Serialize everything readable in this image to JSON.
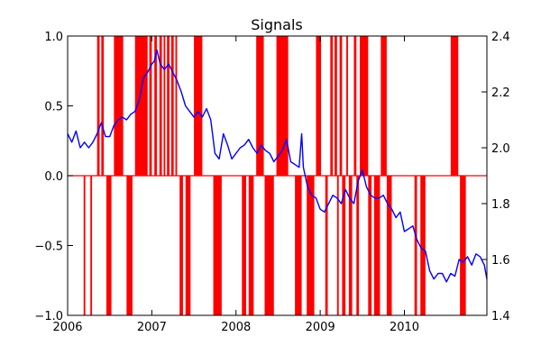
{
  "chart_data": {
    "type": "bar",
    "title": "Signals",
    "xlabel": "",
    "ylabel": "",
    "y2label": "",
    "xlim": [
      2006.0,
      2010.98
    ],
    "ylim": [
      -1.0,
      1.0
    ],
    "y2lim": [
      1.4,
      2.4
    ],
    "x_ticks": [
      2006,
      2007,
      2008,
      2009,
      2010
    ],
    "x_tick_labels": [
      "2006",
      "2007",
      "2008",
      "2009",
      "2010"
    ],
    "y_ticks": [
      1.0,
      0.5,
      0.0,
      -0.5,
      -1.0
    ],
    "y_tick_labels": [
      "1.0",
      "0.5",
      "0.0",
      "−0.5",
      "−1.0"
    ],
    "y2_ticks": [
      2.4,
      2.2,
      2.0,
      1.8,
      1.6,
      1.4
    ],
    "y2_tick_labels": [
      "2.4",
      "2.2",
      "2.0",
      "1.8",
      "1.6",
      "1.4"
    ],
    "grid": false,
    "legend": "none",
    "colors": {
      "signal": "#ff0000",
      "price": "#0000ff",
      "axis": "#000000"
    },
    "signals": [
      {
        "start": 2006.19,
        "end": 2006.21,
        "value": -1
      },
      {
        "start": 2006.27,
        "end": 2006.29,
        "value": -1
      },
      {
        "start": 2006.35,
        "end": 2006.38,
        "value": 1
      },
      {
        "start": 2006.4,
        "end": 2006.43,
        "value": 1
      },
      {
        "start": 2006.46,
        "end": 2006.52,
        "value": -1
      },
      {
        "start": 2006.55,
        "end": 2006.66,
        "value": 1
      },
      {
        "start": 2006.7,
        "end": 2006.77,
        "value": -1
      },
      {
        "start": 2006.8,
        "end": 2006.95,
        "value": 1
      },
      {
        "start": 2006.97,
        "end": 2007.0,
        "value": 1
      },
      {
        "start": 2007.03,
        "end": 2007.06,
        "value": 1
      },
      {
        "start": 2007.09,
        "end": 2007.12,
        "value": 1
      },
      {
        "start": 2007.14,
        "end": 2007.16,
        "value": 1
      },
      {
        "start": 2007.18,
        "end": 2007.21,
        "value": 1
      },
      {
        "start": 2007.23,
        "end": 2007.26,
        "value": 1
      },
      {
        "start": 2007.28,
        "end": 2007.3,
        "value": 1
      },
      {
        "start": 2007.33,
        "end": 2007.37,
        "value": -1
      },
      {
        "start": 2007.4,
        "end": 2007.46,
        "value": -1
      },
      {
        "start": 2007.5,
        "end": 2007.6,
        "value": 1
      },
      {
        "start": 2007.73,
        "end": 2007.83,
        "value": -1
      },
      {
        "start": 2008.07,
        "end": 2008.12,
        "value": -1
      },
      {
        "start": 2008.15,
        "end": 2008.21,
        "value": -1
      },
      {
        "start": 2008.24,
        "end": 2008.33,
        "value": 1
      },
      {
        "start": 2008.34,
        "end": 2008.45,
        "value": -1
      },
      {
        "start": 2008.48,
        "end": 2008.62,
        "value": 1
      },
      {
        "start": 2008.7,
        "end": 2008.78,
        "value": -1
      },
      {
        "start": 2008.84,
        "end": 2008.93,
        "value": -1
      },
      {
        "start": 2008.95,
        "end": 2009.01,
        "value": 1
      },
      {
        "start": 2009.06,
        "end": 2009.09,
        "value": -1
      },
      {
        "start": 2009.12,
        "end": 2009.15,
        "value": 1
      },
      {
        "start": 2009.17,
        "end": 2009.2,
        "value": 1
      },
      {
        "start": 2009.2,
        "end": 2009.22,
        "value": -1
      },
      {
        "start": 2009.23,
        "end": 2009.26,
        "value": 1
      },
      {
        "start": 2009.26,
        "end": 2009.3,
        "value": -1
      },
      {
        "start": 2009.31,
        "end": 2009.33,
        "value": 1
      },
      {
        "start": 2009.34,
        "end": 2009.38,
        "value": -1
      },
      {
        "start": 2009.4,
        "end": 2009.43,
        "value": 1
      },
      {
        "start": 2009.43,
        "end": 2009.46,
        "value": -1
      },
      {
        "start": 2009.47,
        "end": 2009.57,
        "value": 1
      },
      {
        "start": 2009.57,
        "end": 2009.61,
        "value": -1
      },
      {
        "start": 2009.64,
        "end": 2009.71,
        "value": -1
      },
      {
        "start": 2009.72,
        "end": 2009.79,
        "value": 1
      },
      {
        "start": 2009.79,
        "end": 2009.85,
        "value": -1
      },
      {
        "start": 2010.12,
        "end": 2010.15,
        "value": -1
      },
      {
        "start": 2010.19,
        "end": 2010.25,
        "value": -1
      },
      {
        "start": 2010.55,
        "end": 2010.64,
        "value": 1
      },
      {
        "start": 2010.66,
        "end": 2010.73,
        "value": -1
      }
    ],
    "series": [
      {
        "axis": "right",
        "x": [
          2006.0,
          2006.05,
          2006.1,
          2006.15,
          2006.2,
          2006.25,
          2006.3,
          2006.35,
          2006.4,
          2006.45,
          2006.5,
          2006.55,
          2006.6,
          2006.65,
          2006.7,
          2006.75,
          2006.8,
          2006.85,
          2006.9,
          2006.95,
          2007.0,
          2007.03,
          2007.06,
          2007.1,
          2007.15,
          2007.2,
          2007.25,
          2007.3,
          2007.35,
          2007.4,
          2007.45,
          2007.5,
          2007.55,
          2007.6,
          2007.65,
          2007.7,
          2007.75,
          2007.8,
          2007.85,
          2007.9,
          2007.95,
          2008.0,
          2008.05,
          2008.1,
          2008.15,
          2008.2,
          2008.25,
          2008.3,
          2008.35,
          2008.4,
          2008.45,
          2008.5,
          2008.55,
          2008.6,
          2008.65,
          2008.7,
          2008.75,
          2008.78,
          2008.8,
          2008.85,
          2008.9,
          2008.95,
          2009.0,
          2009.05,
          2009.1,
          2009.15,
          2009.2,
          2009.25,
          2009.3,
          2009.35,
          2009.4,
          2009.45,
          2009.5,
          2009.55,
          2009.6,
          2009.65,
          2009.7,
          2009.75,
          2009.8,
          2009.85,
          2009.9,
          2009.95,
          2010.0,
          2010.05,
          2010.1,
          2010.15,
          2010.2,
          2010.25,
          2010.3,
          2010.35,
          2010.4,
          2010.45,
          2010.5,
          2010.55,
          2010.6,
          2010.65,
          2010.7,
          2010.75,
          2010.8,
          2010.85,
          2010.9,
          2010.95,
          2010.98
        ],
        "values": [
          2.05,
          2.02,
          2.06,
          2.0,
          2.02,
          2.0,
          2.02,
          2.05,
          2.09,
          2.04,
          2.04,
          2.08,
          2.1,
          2.11,
          2.1,
          2.12,
          2.13,
          2.17,
          2.25,
          2.27,
          2.3,
          2.31,
          2.35,
          2.3,
          2.28,
          2.3,
          2.27,
          2.24,
          2.2,
          2.15,
          2.13,
          2.11,
          2.13,
          2.11,
          2.14,
          2.1,
          1.98,
          1.96,
          2.05,
          2.01,
          1.96,
          1.98,
          2.0,
          2.01,
          2.03,
          2.0,
          1.98,
          2.01,
          1.99,
          1.98,
          1.95,
          1.97,
          1.99,
          2.03,
          1.95,
          1.94,
          1.93,
          2.05,
          1.93,
          1.86,
          1.83,
          1.82,
          1.78,
          1.77,
          1.8,
          1.83,
          1.82,
          1.8,
          1.85,
          1.82,
          1.8,
          1.88,
          1.92,
          1.86,
          1.83,
          1.82,
          1.82,
          1.83,
          1.8,
          1.78,
          1.75,
          1.77,
          1.7,
          1.71,
          1.72,
          1.67,
          1.64,
          1.63,
          1.56,
          1.53,
          1.55,
          1.55,
          1.52,
          1.55,
          1.54,
          1.6,
          1.59,
          1.61,
          1.58,
          1.62,
          1.61,
          1.58,
          1.53
        ]
      }
    ]
  }
}
